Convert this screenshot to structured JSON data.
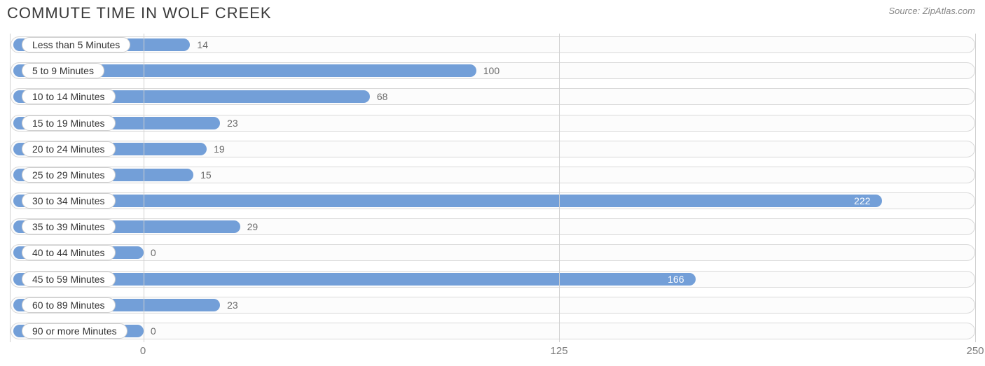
{
  "title": "COMMUTE TIME IN WOLF CREEK",
  "source_prefix": "Source: ",
  "source_name": "ZipAtlas.com",
  "chart": {
    "type": "bar-horizontal",
    "bar_color": "#739fd8",
    "track_border_color": "#d9d9d9",
    "track_bg": "#fcfcfc",
    "grid_color": "#d0d0d0",
    "label_text_color": "#333333",
    "value_text_color_outside": "#6b6b6b",
    "value_text_color_inside": "#ffffff",
    "font_size_label": 14,
    "font_size_value": 14,
    "font_size_tick": 15,
    "x_min": -40,
    "x_max": 250,
    "x_ticks": [
      {
        "value": 0,
        "label": "0"
      },
      {
        "value": 125,
        "label": "125"
      },
      {
        "value": 250,
        "label": "250"
      }
    ],
    "rows": [
      {
        "label": "Less than 5 Minutes",
        "value": 14
      },
      {
        "label": "5 to 9 Minutes",
        "value": 100
      },
      {
        "label": "10 to 14 Minutes",
        "value": 68
      },
      {
        "label": "15 to 19 Minutes",
        "value": 23
      },
      {
        "label": "20 to 24 Minutes",
        "value": 19
      },
      {
        "label": "25 to 29 Minutes",
        "value": 15
      },
      {
        "label": "30 to 34 Minutes",
        "value": 222
      },
      {
        "label": "35 to 39 Minutes",
        "value": 29
      },
      {
        "label": "40 to 44 Minutes",
        "value": 0
      },
      {
        "label": "45 to 59 Minutes",
        "value": 166
      },
      {
        "label": "60 to 89 Minutes",
        "value": 23
      },
      {
        "label": "90 or more Minutes",
        "value": 0
      }
    ],
    "value_inside_threshold": 150
  }
}
